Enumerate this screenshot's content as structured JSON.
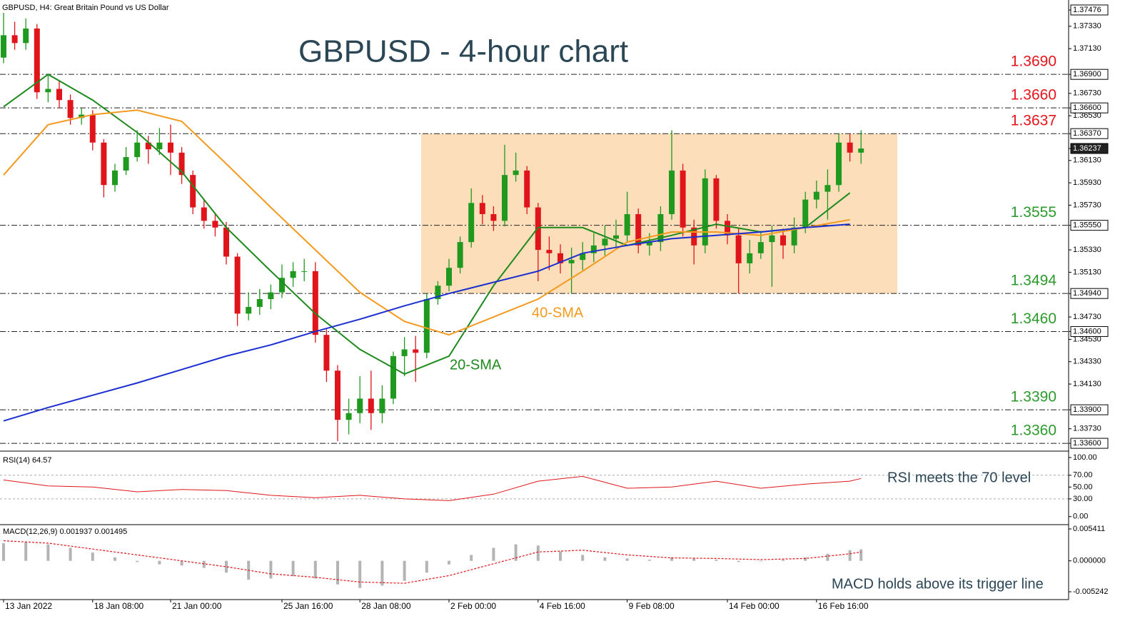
{
  "chart_data": [
    {
      "type": "candlestick",
      "subtitle": "GBPUSD, H4:  Great Britain Pound vs US Dollar",
      "title": "GBPUSD - 4-hour chart",
      "open": [
        1.3705,
        1.3725,
        1.3718,
        1.3731,
        1.3674,
        1.3677,
        1.3667,
        1.3651,
        1.3654,
        1.3629,
        1.3591,
        1.3604,
        1.3616,
        1.3629,
        1.3623,
        1.3629,
        1.362,
        1.36,
        1.3571,
        1.3559,
        1.3553,
        1.3527,
        1.3476,
        1.3482,
        1.3489,
        1.3495,
        1.3508,
        1.3514,
        1.3514,
        1.3457,
        1.3425,
        1.3381,
        1.3387,
        1.34,
        1.3387,
        1.34,
        1.3438,
        1.3444,
        1.3441,
        1.3489,
        1.3501,
        1.3517,
        1.354,
        1.3575,
        1.3565,
        1.3559,
        1.36,
        1.3604,
        1.3571,
        1.3533,
        1.353,
        1.3521,
        1.3524,
        1.353,
        1.3537,
        1.3543,
        1.3546,
        1.3565,
        1.3537,
        1.354,
        1.3565,
        1.3604,
        1.3553,
        1.3537,
        1.3597,
        1.3559,
        1.3546,
        1.3521,
        1.353,
        1.354,
        1.3546,
        1.3537,
        1.3553,
        1.3578,
        1.3585,
        1.3591,
        1.3629,
        1.362
      ],
      "high": [
        1.3745,
        1.3737,
        1.374,
        1.3735,
        1.369,
        1.3684,
        1.3672,
        1.366,
        1.3658,
        1.3632,
        1.361,
        1.3625,
        1.364,
        1.3635,
        1.3642,
        1.3645,
        1.3625,
        1.3604,
        1.3578,
        1.3565,
        1.3558,
        1.353,
        1.3495,
        1.3498,
        1.3502,
        1.352,
        1.3522,
        1.3525,
        1.3522,
        1.3462,
        1.343,
        1.34,
        1.342,
        1.3425,
        1.3412,
        1.3442,
        1.3455,
        1.3456,
        1.3494,
        1.3505,
        1.3525,
        1.3545,
        1.3588,
        1.3582,
        1.3572,
        1.3627,
        1.362,
        1.3608,
        1.3575,
        1.3545,
        1.3538,
        1.3535,
        1.354,
        1.3548,
        1.3555,
        1.356,
        1.3585,
        1.357,
        1.3548,
        1.3572,
        1.364,
        1.361,
        1.356,
        1.3605,
        1.36,
        1.3565,
        1.3552,
        1.3542,
        1.355,
        1.3555,
        1.3552,
        1.3562,
        1.3585,
        1.3595,
        1.3605,
        1.3637,
        1.3637,
        1.364
      ],
      "low": [
        1.37,
        1.3712,
        1.3712,
        1.3668,
        1.3665,
        1.366,
        1.3645,
        1.3645,
        1.3622,
        1.358,
        1.3585,
        1.36,
        1.3612,
        1.361,
        1.3618,
        1.36,
        1.3592,
        1.3565,
        1.3552,
        1.3545,
        1.352,
        1.3465,
        1.347,
        1.3475,
        1.348,
        1.349,
        1.35,
        1.3505,
        1.345,
        1.3415,
        1.3362,
        1.3368,
        1.3378,
        1.3372,
        1.3378,
        1.3395,
        1.342,
        1.3415,
        1.3436,
        1.3484,
        1.3496,
        1.3512,
        1.3535,
        1.3556,
        1.355,
        1.3554,
        1.3594,
        1.3565,
        1.3505,
        1.3515,
        1.3512,
        1.3494,
        1.3515,
        1.3522,
        1.3528,
        1.3535,
        1.354,
        1.353,
        1.3528,
        1.3532,
        1.356,
        1.3545,
        1.352,
        1.353,
        1.3552,
        1.3538,
        1.3494,
        1.3512,
        1.3525,
        1.35,
        1.3525,
        1.353,
        1.3548,
        1.357,
        1.356,
        1.3585,
        1.3612,
        1.361
      ],
      "close": [
        1.3725,
        1.3718,
        1.3731,
        1.3674,
        1.3677,
        1.3667,
        1.3651,
        1.3654,
        1.3629,
        1.3591,
        1.3604,
        1.3616,
        1.3629,
        1.3623,
        1.3629,
        1.362,
        1.36,
        1.3571,
        1.3559,
        1.3553,
        1.3527,
        1.3476,
        1.3482,
        1.3489,
        1.3495,
        1.3508,
        1.3514,
        1.3514,
        1.3457,
        1.3425,
        1.3381,
        1.3387,
        1.34,
        1.3387,
        1.34,
        1.3438,
        1.3444,
        1.3441,
        1.3489,
        1.3501,
        1.3517,
        1.354,
        1.3575,
        1.3565,
        1.3559,
        1.36,
        1.3604,
        1.3571,
        1.3533,
        1.353,
        1.3521,
        1.3524,
        1.353,
        1.3537,
        1.3543,
        1.3546,
        1.3565,
        1.3537,
        1.354,
        1.3565,
        1.3604,
        1.3553,
        1.3537,
        1.3597,
        1.3559,
        1.3546,
        1.3521,
        1.353,
        1.354,
        1.3546,
        1.3537,
        1.3553,
        1.3578,
        1.3585,
        1.3591,
        1.3629,
        1.362,
        1.36237
      ],
      "up_color": "#1f9a1f",
      "down_color": "#e0151b",
      "series": [
        {
          "name": "20-SMA",
          "color": "#1e8a1e",
          "x": [
            0,
            4,
            8,
            12,
            16,
            20,
            24,
            28,
            32,
            36,
            40,
            44,
            48,
            52,
            56,
            60,
            64,
            68,
            72,
            76
          ],
          "values": [
            1.3661,
            1.369,
            1.3667,
            1.3638,
            1.3603,
            1.3553,
            1.3514,
            1.3476,
            1.3444,
            1.3422,
            1.3438,
            1.3501,
            1.3553,
            1.3553,
            1.3537,
            1.3546,
            1.3556,
            1.3549,
            1.3553,
            1.3584
          ]
        },
        {
          "name": "40-SMA",
          "color": "#f39a1e",
          "x": [
            0,
            4,
            8,
            12,
            16,
            20,
            24,
            28,
            32,
            36,
            40,
            44,
            48,
            52,
            56,
            60,
            64,
            68,
            72,
            76
          ],
          "values": [
            1.36,
            1.3645,
            1.3654,
            1.3658,
            1.3648,
            1.361,
            1.3571,
            1.3533,
            1.3495,
            1.3469,
            1.3457,
            1.3473,
            1.3489,
            1.3514,
            1.354,
            1.3549,
            1.3549,
            1.3546,
            1.3553,
            1.356
          ]
        },
        {
          "color": "#1c2fd0",
          "x": [
            0,
            4,
            8,
            12,
            16,
            20,
            24,
            28,
            32,
            36,
            40,
            44,
            48,
            52,
            56,
            60,
            64,
            68,
            72,
            76
          ],
          "values": [
            1.338,
            1.3392,
            1.3403,
            1.3414,
            1.3426,
            1.3438,
            1.3448,
            1.346,
            1.3471,
            1.3483,
            1.3494,
            1.3504,
            1.3514,
            1.353,
            1.3537,
            1.3543,
            1.3546,
            1.3549,
            1.3553,
            1.3556
          ]
        }
      ],
      "levels": [
        {
          "value": 1.369,
          "label": "1.3690",
          "color": "#e8141b"
        },
        {
          "value": 1.366,
          "label": "1.3660",
          "color": "#e8141b"
        },
        {
          "value": 1.3637,
          "label": "1.3637",
          "color": "#e8141b"
        },
        {
          "value": 1.3555,
          "label": "1.3555",
          "color": "#2c9a2c"
        },
        {
          "value": 1.3494,
          "label": "1.3494",
          "color": "#2c9a2c"
        },
        {
          "value": 1.346,
          "label": "1.3460",
          "color": "#2c9a2c"
        },
        {
          "value": 1.339,
          "label": "1.3390",
          "color": "#2c9a2c"
        },
        {
          "value": 1.336,
          "label": "1.3360",
          "color": "#2c9a2c"
        }
      ],
      "xlim": [
        -0.32,
        95.64
      ],
      "ylim": [
        1.33543,
        1.37546
      ],
      "yticks": [
        {
          "value": 1.37476,
          "label": "1.37476",
          "style": "boxed"
        },
        {
          "value": 1.3733,
          "label": "1.37330"
        },
        {
          "value": 1.3713,
          "label": "1.37130"
        },
        {
          "value": 1.369,
          "label": "1.36900",
          "style": "boxed"
        },
        {
          "value": 1.3673,
          "label": "1.36730"
        },
        {
          "value": 1.366,
          "label": "1.36600",
          "style": "boxed"
        },
        {
          "value": 1.3653,
          "label": "1.36530"
        },
        {
          "value": 1.3637,
          "label": "1.36370",
          "style": "boxed"
        },
        {
          "value": 1.36237,
          "label": "1.36237",
          "style": "current"
        },
        {
          "value": 1.3613,
          "label": "1.36130"
        },
        {
          "value": 1.3593,
          "label": "1.35930"
        },
        {
          "value": 1.3573,
          "label": "1.35730"
        },
        {
          "value": 1.3555,
          "label": "1.35550",
          "style": "boxed"
        },
        {
          "value": 1.3533,
          "label": "1.35330"
        },
        {
          "value": 1.3513,
          "label": "1.35130"
        },
        {
          "value": 1.3494,
          "label": "1.34940",
          "style": "boxed"
        },
        {
          "value": 1.3473,
          "label": "1.34730"
        },
        {
          "value": 1.346,
          "label": "1.34600",
          "style": "boxed"
        },
        {
          "value": 1.3453,
          "label": "1.34530"
        },
        {
          "value": 1.3433,
          "label": "1.34330"
        },
        {
          "value": 1.3413,
          "label": "1.34130"
        },
        {
          "value": 1.339,
          "label": "1.33900",
          "style": "boxed"
        },
        {
          "value": 1.3373,
          "label": "1.33730"
        },
        {
          "value": 1.336,
          "label": "1.33600",
          "style": "boxed"
        }
      ],
      "xticks": [
        {
          "value": 0,
          "label": "13 Jan 2022"
        },
        {
          "value": 8,
          "label": "18 Jan 08:00"
        },
        {
          "value": 15,
          "label": "21 Jan 00:00"
        },
        {
          "value": 25,
          "label": "25 Jan 16:00"
        },
        {
          "value": 32,
          "label": "28 Jan 08:00"
        },
        {
          "value": 40,
          "label": "2 Feb 00:00"
        },
        {
          "value": 48,
          "label": "4 Feb 16:00"
        },
        {
          "value": 56,
          "label": "9 Feb 08:00"
        },
        {
          "value": 65,
          "label": "14 Feb 00:00"
        },
        {
          "value": 73,
          "label": "16 Feb 16:00"
        }
      ],
      "range_color": "#fbd9ae"
    },
    {
      "type": "line",
      "title": "RSI(14) 64.57",
      "annotation": "RSI meets the 70 level",
      "color": "#e0151b",
      "x": [
        0,
        4,
        8,
        12,
        16,
        20,
        24,
        28,
        32,
        36,
        40,
        44,
        48,
        52,
        56,
        60,
        64,
        68,
        72,
        76,
        77
      ],
      "values": [
        62,
        52,
        50,
        42,
        46,
        44,
        36,
        32,
        36,
        30,
        27,
        38,
        60,
        68,
        48,
        50,
        60,
        48,
        55,
        60,
        64.57
      ],
      "xlim": [
        -0.32,
        95.64
      ],
      "ylim": [
        -10,
        106
      ],
      "yticks": [
        {
          "value": 100,
          "label": "100.00"
        },
        {
          "value": 70,
          "label": "70.00"
        },
        {
          "value": 50,
          "label": "50.00"
        },
        {
          "value": 30,
          "label": "30.00"
        },
        {
          "value": 0,
          "label": "0.00"
        }
      ],
      "levels": [
        70,
        30
      ]
    },
    {
      "type": "macd",
      "title": "MACD(12,26,9) 0.001937 0.001495",
      "annotation": "MACD holds above its trigger line",
      "histogram": {
        "color": "#b4b4b4",
        "x": [
          0,
          2,
          4,
          6,
          8,
          10,
          12,
          14,
          16,
          18,
          20,
          22,
          24,
          26,
          28,
          30,
          32,
          34,
          36,
          38,
          40,
          42,
          44,
          46,
          48,
          50,
          52,
          54,
          56,
          58,
          60,
          62,
          64,
          66,
          68,
          70,
          72,
          74,
          76,
          77
        ],
        "values": [
          0.003,
          0.0032,
          0.0028,
          0.0022,
          0.0014,
          0.0006,
          -0.0002,
          -0.0006,
          -0.0008,
          -0.0012,
          -0.002,
          -0.0032,
          -0.003,
          -0.0026,
          -0.003,
          -0.004,
          -0.0046,
          -0.0042,
          -0.0034,
          -0.002,
          -0.0006,
          0.001,
          0.0022,
          0.0028,
          0.0026,
          0.0016,
          0.001,
          0.0006,
          0.0004,
          0.0002,
          0.0006,
          0.0004,
          0.0002,
          -0.0002,
          -0.0001,
          0.0002,
          0.0006,
          0.0012,
          0.0018,
          0.001937
        ]
      },
      "signal": {
        "color": "#e0151b",
        "x": [
          0,
          4,
          8,
          12,
          16,
          20,
          24,
          28,
          32,
          36,
          40,
          44,
          48,
          52,
          56,
          60,
          64,
          68,
          72,
          76,
          77
        ],
        "values": [
          0.0034,
          0.003,
          0.002,
          0.001,
          0,
          -0.001,
          -0.0022,
          -0.0028,
          -0.0036,
          -0.0038,
          -0.0025,
          -0.0005,
          0.0015,
          0.0018,
          0.001,
          0.0005,
          0.0004,
          0.0002,
          0.0004,
          0.0012,
          0.001495
        ]
      },
      "xlim": [
        -0.32,
        95.64
      ],
      "ylim": [
        -0.006331,
        0.005895
      ],
      "yticks": [
        0.005411,
        {
          "value": 0,
          "label": "0.000000"
        },
        -0.005242
      ]
    }
  ]
}
